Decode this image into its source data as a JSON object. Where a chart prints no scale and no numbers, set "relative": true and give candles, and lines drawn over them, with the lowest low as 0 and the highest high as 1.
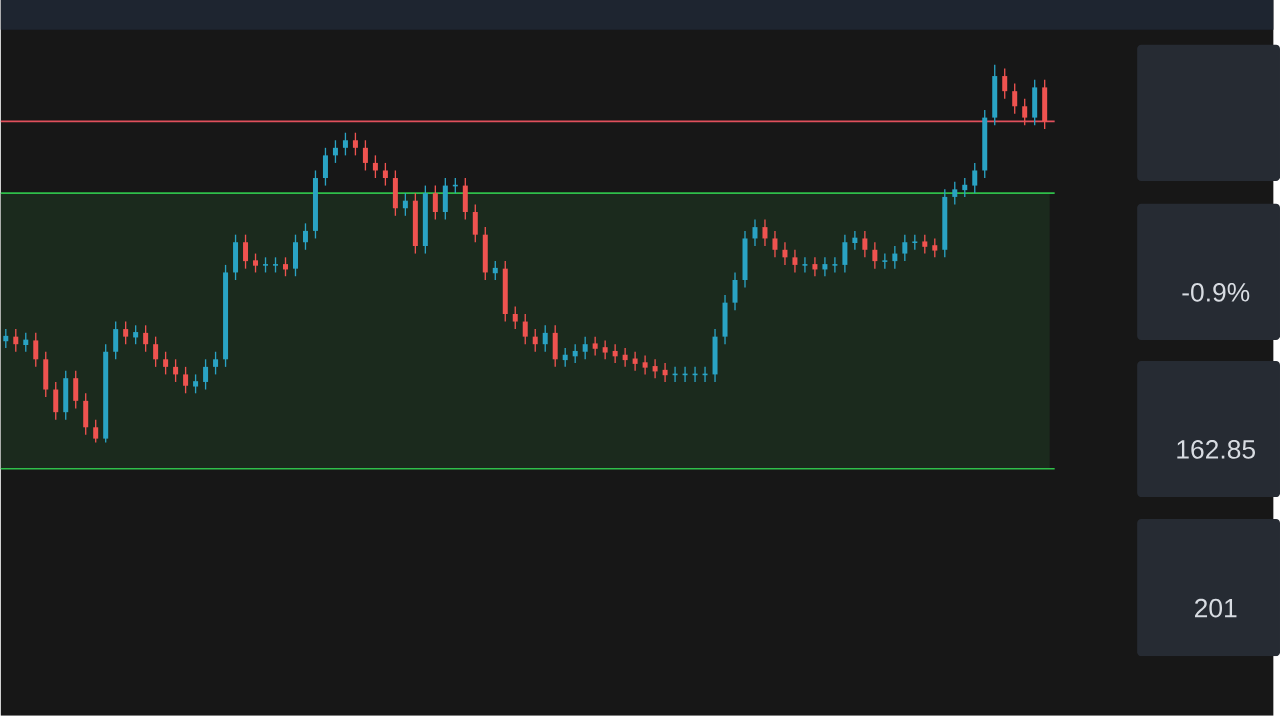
{
  "chart_data": {
    "type": "candlestick",
    "relative": true,
    "categories": [
      null,
      null,
      null,
      null,
      null,
      null,
      null,
      null,
      null,
      null,
      null,
      null,
      null,
      null,
      null,
      null,
      null,
      null,
      null,
      null,
      null,
      null,
      null,
      null,
      null,
      null,
      null,
      null,
      null,
      null,
      null,
      null,
      null,
      null,
      null,
      null,
      null,
      null,
      null,
      null,
      null,
      null,
      null,
      null,
      null,
      null,
      null,
      null,
      null,
      null,
      null,
      null,
      null,
      null,
      null,
      null,
      null,
      null,
      null,
      null,
      null,
      null,
      null,
      null,
      null,
      null,
      null,
      null,
      null,
      null,
      null,
      null,
      null,
      null,
      null,
      null,
      null,
      null,
      null,
      null,
      null,
      null,
      null,
      null,
      null,
      null,
      null,
      null,
      null,
      null,
      null,
      null,
      null,
      null,
      null,
      null,
      null,
      null,
      null,
      null,
      null,
      null,
      null,
      null,
      null
    ],
    "ohlc": [
      [
        0.27,
        0.3,
        0.25,
        0.28
      ],
      [
        0.28,
        0.3,
        0.24,
        0.26
      ],
      [
        0.26,
        0.29,
        0.24,
        0.27
      ],
      [
        0.27,
        0.29,
        0.2,
        0.22
      ],
      [
        0.22,
        0.24,
        0.12,
        0.14
      ],
      [
        0.14,
        0.16,
        0.06,
        0.08
      ],
      [
        0.08,
        0.19,
        0.06,
        0.17
      ],
      [
        0.17,
        0.19,
        0.09,
        0.11
      ],
      [
        0.11,
        0.13,
        0.02,
        0.04
      ],
      [
        0.04,
        0.06,
        0.0,
        0.01
      ],
      [
        0.01,
        0.26,
        0.0,
        0.24
      ],
      [
        0.24,
        0.32,
        0.22,
        0.3
      ],
      [
        0.3,
        0.32,
        0.26,
        0.28
      ],
      [
        0.28,
        0.31,
        0.26,
        0.29
      ],
      [
        0.29,
        0.31,
        0.24,
        0.26
      ],
      [
        0.26,
        0.28,
        0.2,
        0.22
      ],
      [
        0.22,
        0.24,
        0.18,
        0.2
      ],
      [
        0.2,
        0.22,
        0.16,
        0.18
      ],
      [
        0.18,
        0.2,
        0.13,
        0.15
      ],
      [
        0.15,
        0.18,
        0.13,
        0.16
      ],
      [
        0.16,
        0.22,
        0.14,
        0.2
      ],
      [
        0.2,
        0.24,
        0.18,
        0.22
      ],
      [
        0.22,
        0.47,
        0.2,
        0.45
      ],
      [
        0.45,
        0.55,
        0.43,
        0.53
      ],
      [
        0.53,
        0.55,
        0.46,
        0.48
      ],
      [
        0.48,
        0.5,
        0.45,
        0.47
      ],
      [
        0.47,
        0.49,
        0.45,
        0.47
      ],
      [
        0.47,
        0.49,
        0.45,
        0.47
      ],
      [
        0.47,
        0.49,
        0.44,
        0.46
      ],
      [
        0.46,
        0.55,
        0.44,
        0.53
      ],
      [
        0.53,
        0.58,
        0.51,
        0.56
      ],
      [
        0.56,
        0.72,
        0.54,
        0.7
      ],
      [
        0.7,
        0.78,
        0.68,
        0.76
      ],
      [
        0.76,
        0.8,
        0.74,
        0.78
      ],
      [
        0.78,
        0.82,
        0.76,
        0.8
      ],
      [
        0.8,
        0.82,
        0.76,
        0.78
      ],
      [
        0.78,
        0.8,
        0.72,
        0.74
      ],
      [
        0.74,
        0.76,
        0.7,
        0.72
      ],
      [
        0.72,
        0.74,
        0.68,
        0.7
      ],
      [
        0.7,
        0.72,
        0.6,
        0.62
      ],
      [
        0.62,
        0.66,
        0.6,
        0.64
      ],
      [
        0.64,
        0.66,
        0.5,
        0.52
      ],
      [
        0.52,
        0.68,
        0.5,
        0.66
      ],
      [
        0.66,
        0.68,
        0.59,
        0.61
      ],
      [
        0.61,
        0.7,
        0.59,
        0.68
      ],
      [
        0.68,
        0.7,
        0.66,
        0.68
      ],
      [
        0.68,
        0.7,
        0.59,
        0.61
      ],
      [
        0.61,
        0.63,
        0.53,
        0.55
      ],
      [
        0.55,
        0.57,
        0.43,
        0.45
      ],
      [
        0.45,
        0.48,
        0.43,
        0.46
      ],
      [
        0.46,
        0.48,
        0.32,
        0.34
      ],
      [
        0.34,
        0.36,
        0.3,
        0.32
      ],
      [
        0.32,
        0.34,
        0.26,
        0.28
      ],
      [
        0.28,
        0.3,
        0.24,
        0.26
      ],
      [
        0.26,
        0.31,
        0.24,
        0.29
      ],
      [
        0.29,
        0.31,
        0.2,
        0.22
      ],
      [
        0.22,
        0.25,
        0.2,
        0.23
      ],
      [
        0.23,
        0.26,
        0.21,
        0.24
      ],
      [
        0.24,
        0.28,
        0.22,
        0.26
      ],
      [
        0.26,
        0.28,
        0.23,
        0.25
      ],
      [
        0.25,
        0.27,
        0.22,
        0.24
      ],
      [
        0.24,
        0.26,
        0.21,
        0.23
      ],
      [
        0.23,
        0.25,
        0.2,
        0.22
      ],
      [
        0.22,
        0.24,
        0.19,
        0.21
      ],
      [
        0.21,
        0.23,
        0.18,
        0.2
      ],
      [
        0.2,
        0.22,
        0.17,
        0.19
      ],
      [
        0.19,
        0.21,
        0.16,
        0.18
      ],
      [
        0.18,
        0.2,
        0.16,
        0.18
      ],
      [
        0.18,
        0.2,
        0.16,
        0.18
      ],
      [
        0.18,
        0.2,
        0.16,
        0.18
      ],
      [
        0.18,
        0.2,
        0.16,
        0.18
      ],
      [
        0.18,
        0.3,
        0.16,
        0.28
      ],
      [
        0.28,
        0.39,
        0.26,
        0.37
      ],
      [
        0.37,
        0.45,
        0.35,
        0.43
      ],
      [
        0.43,
        0.56,
        0.41,
        0.54
      ],
      [
        0.54,
        0.59,
        0.52,
        0.57
      ],
      [
        0.57,
        0.59,
        0.52,
        0.54
      ],
      [
        0.54,
        0.56,
        0.49,
        0.51
      ],
      [
        0.51,
        0.53,
        0.47,
        0.49
      ],
      [
        0.49,
        0.51,
        0.45,
        0.47
      ],
      [
        0.47,
        0.49,
        0.45,
        0.47
      ],
      [
        0.47,
        0.49,
        0.44,
        0.46
      ],
      [
        0.46,
        0.49,
        0.44,
        0.47
      ],
      [
        0.47,
        0.49,
        0.45,
        0.47
      ],
      [
        0.47,
        0.55,
        0.45,
        0.53
      ],
      [
        0.53,
        0.56,
        0.51,
        0.54
      ],
      [
        0.54,
        0.56,
        0.49,
        0.51
      ],
      [
        0.51,
        0.53,
        0.46,
        0.48
      ],
      [
        0.48,
        0.5,
        0.46,
        0.48
      ],
      [
        0.48,
        0.52,
        0.46,
        0.5
      ],
      [
        0.5,
        0.55,
        0.48,
        0.53
      ],
      [
        0.53,
        0.55,
        0.51,
        0.53
      ],
      [
        0.53,
        0.55,
        0.5,
        0.52
      ],
      [
        0.52,
        0.54,
        0.49,
        0.51
      ],
      [
        0.51,
        0.67,
        0.49,
        0.65
      ],
      [
        0.65,
        0.69,
        0.63,
        0.67
      ],
      [
        0.67,
        0.7,
        0.65,
        0.68
      ],
      [
        0.68,
        0.74,
        0.66,
        0.72
      ],
      [
        0.72,
        0.88,
        0.7,
        0.86
      ],
      [
        0.86,
        1.0,
        0.84,
        0.97
      ],
      [
        0.97,
        0.99,
        0.91,
        0.93
      ],
      [
        0.93,
        0.95,
        0.87,
        0.89
      ],
      [
        0.89,
        0.91,
        0.84,
        0.86
      ],
      [
        0.86,
        0.96,
        0.84,
        0.94
      ],
      [
        0.94,
        0.96,
        0.83,
        0.85
      ]
    ],
    "colors": [
      "#2aa3c4",
      "#ef5350",
      "#2aa3c4",
      "#ef5350",
      "#ef5350",
      "#ef5350",
      "#2aa3c4",
      "#ef5350",
      "#ef5350",
      "#ef5350",
      "#2aa3c4",
      "#2aa3c4",
      "#ef5350",
      "#2aa3c4",
      "#ef5350",
      "#ef5350",
      "#ef5350",
      "#ef5350",
      "#ef5350",
      "#2aa3c4",
      "#2aa3c4",
      "#2aa3c4",
      "#2aa3c4",
      "#2aa3c4",
      "#ef5350",
      "#ef5350",
      "#2aa3c4",
      "#2aa3c4",
      "#ef5350",
      "#2aa3c4",
      "#2aa3c4",
      "#2aa3c4",
      "#2aa3c4",
      "#2aa3c4",
      "#2aa3c4",
      "#ef5350",
      "#ef5350",
      "#ef5350",
      "#ef5350",
      "#ef5350",
      "#2aa3c4",
      "#ef5350",
      "#2aa3c4",
      "#ef5350",
      "#2aa3c4",
      "#2aa3c4",
      "#ef5350",
      "#ef5350",
      "#ef5350",
      "#2aa3c4",
      "#ef5350",
      "#ef5350",
      "#ef5350",
      "#ef5350",
      "#2aa3c4",
      "#ef5350",
      "#2aa3c4",
      "#2aa3c4",
      "#2aa3c4",
      "#ef5350",
      "#ef5350",
      "#ef5350",
      "#ef5350",
      "#ef5350",
      "#ef5350",
      "#ef5350",
      "#ef5350",
      "#2aa3c4",
      "#2aa3c4",
      "#2aa3c4",
      "#2aa3c4",
      "#2aa3c4",
      "#2aa3c4",
      "#2aa3c4",
      "#2aa3c4",
      "#2aa3c4",
      "#ef5350",
      "#ef5350",
      "#ef5350",
      "#ef5350",
      "#2aa3c4",
      "#ef5350",
      "#2aa3c4",
      "#2aa3c4",
      "#2aa3c4",
      "#2aa3c4",
      "#ef5350",
      "#ef5350",
      "#2aa3c4",
      "#2aa3c4",
      "#2aa3c4",
      "#2aa3c4",
      "#ef5350",
      "#ef5350",
      "#2aa3c4",
      "#2aa3c4",
      "#2aa3c4",
      "#2aa3c4",
      "#2aa3c4",
      "#2aa3c4",
      "#ef5350",
      "#ef5350",
      "#ef5350",
      "#2aa3c4",
      "#ef5350"
    ],
    "ref_lines": [
      {
        "axis": "y",
        "value": 0.85,
        "color": "#e0505c"
      },
      {
        "axis": "y",
        "value": 0.66,
        "color": "#2fbf4a"
      },
      {
        "axis": "y",
        "value": -0.07,
        "color": "#2fbf4a"
      }
    ],
    "bands": [
      {
        "axis": "y",
        "from": -0.07,
        "to": 0.66,
        "color": "#1b2a1d"
      }
    ],
    "annotations": [
      "-0.9%",
      "162.85",
      "201"
    ]
  }
}
